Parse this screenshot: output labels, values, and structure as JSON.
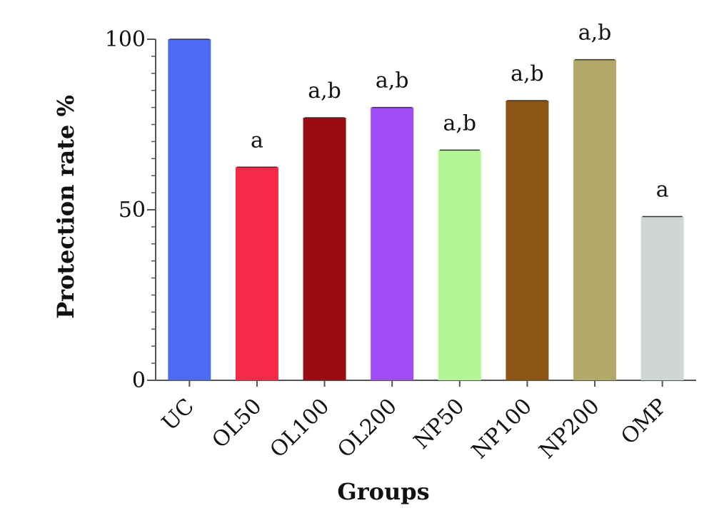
{
  "chart_data": {
    "type": "bar",
    "title": "",
    "xlabel": "Groups",
    "ylabel": "Protection rate %",
    "ylim": [
      0,
      100
    ],
    "yticks": [
      0,
      50,
      100
    ],
    "categories": [
      "UC",
      "OL50",
      "OL100",
      "OL200",
      "NP50",
      "NP100",
      "NP200",
      "OMP"
    ],
    "values": [
      100,
      62.5,
      77,
      80,
      67.5,
      82,
      94,
      48
    ],
    "annotations": [
      "",
      "a",
      "a,b",
      "a,b",
      "a,b",
      "a,b",
      "a,b",
      "a"
    ],
    "colors": [
      "#4b6cf2",
      "#f72a4a",
      "#990d12",
      "#a04cf5",
      "#b2f596",
      "#8a5515",
      "#b2a868",
      "#d0d6d6"
    ],
    "grid": false
  }
}
